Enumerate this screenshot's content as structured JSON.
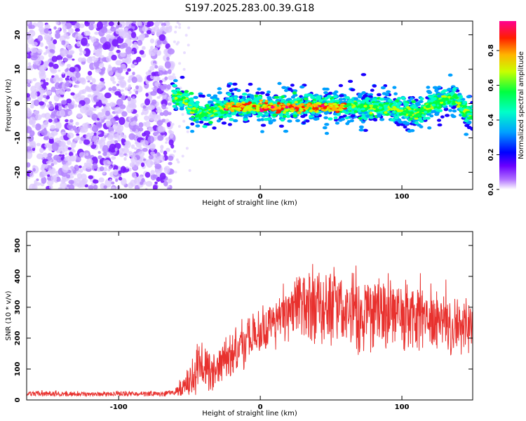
{
  "figure": {
    "title": "S197.2025.283.00.39.G18"
  },
  "chart_data": [
    {
      "type": "heatmap",
      "title": "",
      "xlabel": "Height of straight line (km)",
      "ylabel": "Frequency (Hz)",
      "xlim": [
        -165,
        150
      ],
      "ylim": [
        -25,
        24
      ],
      "xticks": [
        -100,
        0,
        100
      ],
      "yticks": [
        -20,
        -10,
        0,
        10,
        20
      ],
      "colorbar": {
        "label": "Normalized spectral amplitude",
        "range": [
          0,
          0.97
        ],
        "ticks": [
          0.0,
          0.2,
          0.4,
          0.6,
          0.8
        ],
        "colormap": [
          "#ffffff",
          "#9d28ff",
          "#0000ff",
          "#00c8ff",
          "#00ff80",
          "#d8ff00",
          "#ffa000",
          "#ff0000",
          "#ff008c"
        ]
      },
      "signal": {
        "noise_region_x": [
          -165,
          -62
        ],
        "ridge_x": [
          -62,
          150
        ],
        "ridge_frequency_hz": [
          [
            -62,
            2
          ],
          [
            -55,
            2
          ],
          [
            -48,
            -2
          ],
          [
            -40,
            -3
          ],
          [
            -30,
            -2
          ],
          [
            -20,
            -1
          ],
          [
            -10,
            -1
          ],
          [
            0,
            -1
          ],
          [
            10,
            -1
          ],
          [
            20,
            -1
          ],
          [
            30,
            -1
          ],
          [
            40,
            -1
          ],
          [
            50,
            -1
          ],
          [
            60,
            -1
          ],
          [
            70,
            -1
          ],
          [
            80,
            -1
          ],
          [
            90,
            -1
          ],
          [
            100,
            -2
          ],
          [
            110,
            -3
          ],
          [
            120,
            -1
          ],
          [
            130,
            1
          ],
          [
            138,
            2
          ],
          [
            143,
            -2
          ],
          [
            150,
            -3
          ]
        ],
        "peak_amplitude_region_x": [
          -25,
          60
        ]
      }
    },
    {
      "type": "line",
      "title": "",
      "xlabel": "Height of straight line (km)",
      "ylabel": "SNR (10 * v/v)",
      "xlim": [
        -165,
        150
      ],
      "ylim": [
        0,
        545
      ],
      "xticks": [
        -100,
        0,
        100
      ],
      "yticks": [
        0,
        100,
        200,
        300,
        400,
        500
      ],
      "series": [
        {
          "name": "SNR",
          "color": "#e8312e",
          "envelope": {
            "x": [
              -165,
              -140,
              -110,
              -80,
              -62,
              -55,
              -48,
              -40,
              -35,
              -30,
              -20,
              -10,
              0,
              10,
              20,
              30,
              40,
              50,
              60,
              70,
              80,
              90,
              100,
              110,
              120,
              130,
              140,
              150
            ],
            "mean": [
              20,
              20,
              20,
              20,
              22,
              35,
              70,
              110,
              90,
              110,
              150,
              190,
              210,
              245,
              280,
              310,
              305,
              300,
              295,
              285,
              280,
              275,
              265,
              260,
              255,
              245,
              235,
              240
            ],
            "spread": [
              8,
              8,
              8,
              8,
              10,
              25,
              60,
              80,
              60,
              60,
              70,
              80,
              80,
              80,
              90,
              110,
              120,
              120,
              130,
              140,
              130,
              130,
              120,
              120,
              110,
              100,
              80,
              90
            ]
          }
        }
      ]
    }
  ]
}
